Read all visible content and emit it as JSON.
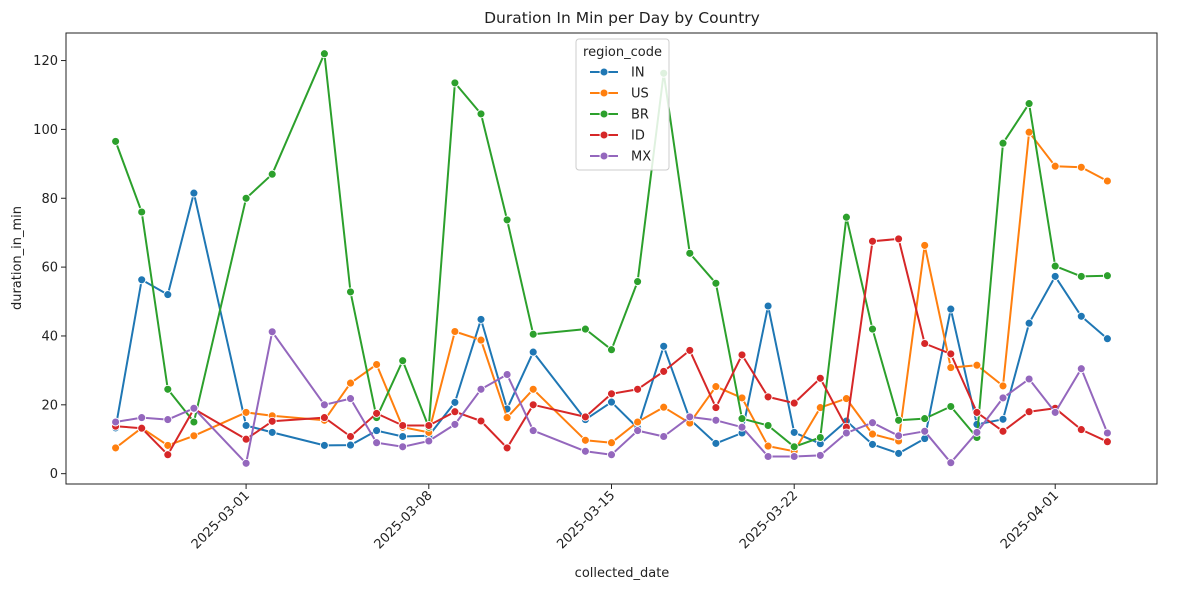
{
  "chart_data": {
    "type": "line",
    "title": "Duration In Min per Day by Country",
    "xlabel": "collected_date",
    "ylabel": "duration_in_min",
    "x_start": "2025-02-24",
    "x": [
      "2025-02-24",
      "2025-02-25",
      "2025-02-26",
      "2025-02-27",
      "2025-03-01",
      "2025-03-02",
      "2025-03-04",
      "2025-03-05",
      "2025-03-06",
      "2025-03-07",
      "2025-03-08",
      "2025-03-09",
      "2025-03-10",
      "2025-03-11",
      "2025-03-12",
      "2025-03-14",
      "2025-03-15",
      "2025-03-16",
      "2025-03-17",
      "2025-03-18",
      "2025-03-19",
      "2025-03-20",
      "2025-03-21",
      "2025-03-22",
      "2025-03-23",
      "2025-03-24",
      "2025-03-25",
      "2025-03-26",
      "2025-03-27",
      "2025-03-28",
      "2025-03-29",
      "2025-03-30",
      "2025-03-31",
      "2025-04-01",
      "2025-04-02",
      "2025-04-03"
    ],
    "xticks": [
      "2025-03-01",
      "2025-03-08",
      "2025-03-15",
      "2025-03-22",
      "2025-04-01"
    ],
    "yticks": [
      0,
      20,
      40,
      60,
      80,
      100,
      120
    ],
    "ylim": [
      -3,
      128
    ],
    "legend_title": "region_code",
    "legend_position": "upper-center",
    "series": [
      {
        "name": "IN",
        "color": "#1f77b4",
        "points": [
          [
            "2025-02-24",
            13.3
          ],
          [
            "2025-02-25",
            56.3
          ],
          [
            "2025-02-26",
            52
          ],
          [
            "2025-02-27",
            81.5
          ],
          [
            "2025-03-01",
            14
          ],
          [
            "2025-03-02",
            12
          ],
          [
            "2025-03-04",
            8.2
          ],
          [
            "2025-03-05",
            8.3
          ],
          [
            "2025-03-06",
            12.5
          ],
          [
            "2025-03-07",
            10.8
          ],
          [
            "2025-03-08",
            11
          ],
          [
            "2025-03-09",
            20.7
          ],
          [
            "2025-03-10",
            44.8
          ],
          [
            "2025-03-11",
            18.8
          ],
          [
            "2025-03-12",
            35.3
          ],
          [
            "2025-03-14",
            15.7
          ],
          [
            "2025-03-15",
            20.8
          ],
          [
            "2025-03-16",
            13.3
          ],
          [
            "2025-03-17",
            37
          ],
          [
            "2025-03-18",
            15.8
          ],
          [
            "2025-03-19",
            8.8
          ],
          [
            "2025-03-20",
            11.8
          ],
          [
            "2025-03-21",
            48.7
          ],
          [
            "2025-03-22",
            12
          ],
          [
            "2025-03-23",
            8.7
          ],
          [
            "2025-03-24",
            15.3
          ],
          [
            "2025-03-25",
            8.5
          ],
          [
            "2025-03-26",
            5.9
          ],
          [
            "2025-03-27",
            10.2
          ],
          [
            "2025-03-28",
            47.8
          ],
          [
            "2025-03-29",
            14.3
          ],
          [
            "2025-03-30",
            15.8
          ],
          [
            "2025-03-31",
            43.7
          ],
          [
            "2025-04-01",
            57.3
          ],
          [
            "2025-04-02",
            45.7
          ],
          [
            "2025-04-03",
            39.2
          ]
        ]
      },
      {
        "name": "US",
        "color": "#ff7f0e",
        "points": [
          [
            "2025-02-24",
            7.5
          ],
          [
            "2025-02-25",
            13.3
          ],
          [
            "2025-02-26",
            8.2
          ],
          [
            "2025-02-27",
            11
          ],
          [
            "2025-03-01",
            17.8
          ],
          [
            "2025-03-02",
            16.8
          ],
          [
            "2025-03-04",
            15.5
          ],
          [
            "2025-03-05",
            26.3
          ],
          [
            "2025-03-06",
            31.7
          ],
          [
            "2025-03-07",
            13.5
          ],
          [
            "2025-03-08",
            12
          ],
          [
            "2025-03-09",
            41.3
          ],
          [
            "2025-03-10",
            38.8
          ],
          [
            "2025-03-11",
            16.3
          ],
          [
            "2025-03-12",
            24.5
          ],
          [
            "2025-03-14",
            9.7
          ],
          [
            "2025-03-15",
            9
          ],
          [
            "2025-03-16",
            15
          ],
          [
            "2025-03-17",
            19.3
          ],
          [
            "2025-03-18",
            14.7
          ],
          [
            "2025-03-19",
            25.3
          ],
          [
            "2025-03-20",
            22
          ],
          [
            "2025-03-21",
            8
          ],
          [
            "2025-03-22",
            6.5
          ],
          [
            "2025-03-23",
            19.2
          ],
          [
            "2025-03-24",
            21.8
          ],
          [
            "2025-03-25",
            11.5
          ],
          [
            "2025-03-26",
            9.5
          ],
          [
            "2025-03-27",
            66.3
          ],
          [
            "2025-03-28",
            30.8
          ],
          [
            "2025-03-29",
            31.5
          ],
          [
            "2025-03-30",
            25.5
          ],
          [
            "2025-03-31",
            99.2
          ],
          [
            "2025-04-01",
            89.3
          ],
          [
            "2025-04-02",
            89
          ],
          [
            "2025-04-03",
            85
          ]
        ]
      },
      {
        "name": "BR",
        "color": "#2ca02c",
        "points": [
          [
            "2025-02-24",
            96.5
          ],
          [
            "2025-02-25",
            76
          ],
          [
            "2025-02-26",
            24.5
          ],
          [
            "2025-02-27",
            15
          ],
          [
            "2025-03-01",
            80
          ],
          [
            "2025-03-02",
            87
          ],
          [
            "2025-03-04",
            122
          ],
          [
            "2025-03-05",
            52.8
          ],
          [
            "2025-03-06",
            16.3
          ],
          [
            "2025-03-07",
            32.8
          ],
          [
            "2025-03-08",
            13.5
          ],
          [
            "2025-03-09",
            113.5
          ],
          [
            "2025-03-10",
            104.5
          ],
          [
            "2025-03-11",
            73.7
          ],
          [
            "2025-03-12",
            40.5
          ],
          [
            "2025-03-14",
            42
          ],
          [
            "2025-03-15",
            36
          ],
          [
            "2025-03-16",
            55.8
          ],
          [
            "2025-03-17",
            116.3
          ],
          [
            "2025-03-18",
            64
          ],
          [
            "2025-03-19",
            55.3
          ],
          [
            "2025-03-20",
            16
          ],
          [
            "2025-03-21",
            14
          ],
          [
            "2025-03-22",
            7.8
          ],
          [
            "2025-03-23",
            10.5
          ],
          [
            "2025-03-24",
            74.5
          ],
          [
            "2025-03-25",
            42
          ],
          [
            "2025-03-26",
            15.5
          ],
          [
            "2025-03-27",
            16
          ],
          [
            "2025-03-28",
            19.5
          ],
          [
            "2025-03-29",
            10.5
          ],
          [
            "2025-03-30",
            96
          ],
          [
            "2025-03-31",
            107.5
          ],
          [
            "2025-04-01",
            60.3
          ],
          [
            "2025-04-02",
            57.3
          ],
          [
            "2025-04-03",
            57.5
          ]
        ]
      },
      {
        "name": "ID",
        "color": "#d62728",
        "points": [
          [
            "2025-02-24",
            13.8
          ],
          [
            "2025-02-25",
            13.2
          ],
          [
            "2025-02-26",
            5.5
          ],
          [
            "2025-02-27",
            18.8
          ],
          [
            "2025-03-01",
            10
          ],
          [
            "2025-03-02",
            15.2
          ],
          [
            "2025-03-04",
            16.3
          ],
          [
            "2025-03-05",
            10.8
          ],
          [
            "2025-03-06",
            17.5
          ],
          [
            "2025-03-07",
            14
          ],
          [
            "2025-03-08",
            14
          ],
          [
            "2025-03-09",
            18
          ],
          [
            "2025-03-10",
            15.3
          ],
          [
            "2025-03-11",
            7.5
          ],
          [
            "2025-03-12",
            20
          ],
          [
            "2025-03-14",
            16.5
          ],
          [
            "2025-03-15",
            23.2
          ],
          [
            "2025-03-16",
            24.5
          ],
          [
            "2025-03-17",
            29.7
          ],
          [
            "2025-03-18",
            35.8
          ],
          [
            "2025-03-19",
            19.2
          ],
          [
            "2025-03-20",
            34.5
          ],
          [
            "2025-03-21",
            22.3
          ],
          [
            "2025-03-22",
            20.5
          ],
          [
            "2025-03-23",
            27.7
          ],
          [
            "2025-03-24",
            13.5
          ],
          [
            "2025-03-25",
            67.5
          ],
          [
            "2025-03-26",
            68.2
          ],
          [
            "2025-03-27",
            37.8
          ],
          [
            "2025-03-28",
            34.8
          ],
          [
            "2025-03-29",
            17.8
          ],
          [
            "2025-03-30",
            12.3
          ],
          [
            "2025-03-31",
            18
          ],
          [
            "2025-04-01",
            19
          ],
          [
            "2025-04-02",
            12.8
          ],
          [
            "2025-04-03",
            9.3
          ]
        ]
      },
      {
        "name": "MX",
        "color": "#9467bd",
        "points": [
          [
            "2025-02-24",
            15
          ],
          [
            "2025-02-25",
            16.3
          ],
          [
            "2025-02-26",
            15.7
          ],
          [
            "2025-02-27",
            19
          ],
          [
            "2025-03-01",
            3
          ],
          [
            "2025-03-02",
            41.2
          ],
          [
            "2025-03-04",
            20
          ],
          [
            "2025-03-05",
            21.8
          ],
          [
            "2025-03-06",
            9
          ],
          [
            "2025-03-07",
            7.8
          ],
          [
            "2025-03-08",
            9.5
          ],
          [
            "2025-03-09",
            14.3
          ],
          [
            "2025-03-10",
            24.5
          ],
          [
            "2025-03-11",
            28.8
          ],
          [
            "2025-03-12",
            12.5
          ],
          [
            "2025-03-14",
            6.5
          ],
          [
            "2025-03-15",
            5.5
          ],
          [
            "2025-03-16",
            12.5
          ],
          [
            "2025-03-17",
            10.8
          ],
          [
            "2025-03-18",
            16.5
          ],
          [
            "2025-03-19",
            15.5
          ],
          [
            "2025-03-20",
            13.5
          ],
          [
            "2025-03-21",
            5
          ],
          [
            "2025-03-22",
            5
          ],
          [
            "2025-03-23",
            5.3
          ],
          [
            "2025-03-24",
            11.8
          ],
          [
            "2025-03-25",
            14.8
          ],
          [
            "2025-03-26",
            11
          ],
          [
            "2025-03-27",
            12.3
          ],
          [
            "2025-03-28",
            3.2
          ],
          [
            "2025-03-29",
            12
          ],
          [
            "2025-03-30",
            22
          ],
          [
            "2025-03-31",
            27.5
          ],
          [
            "2025-04-01",
            17.8
          ],
          [
            "2025-04-02",
            30.5
          ],
          [
            "2025-04-03",
            11.8
          ]
        ]
      }
    ]
  }
}
